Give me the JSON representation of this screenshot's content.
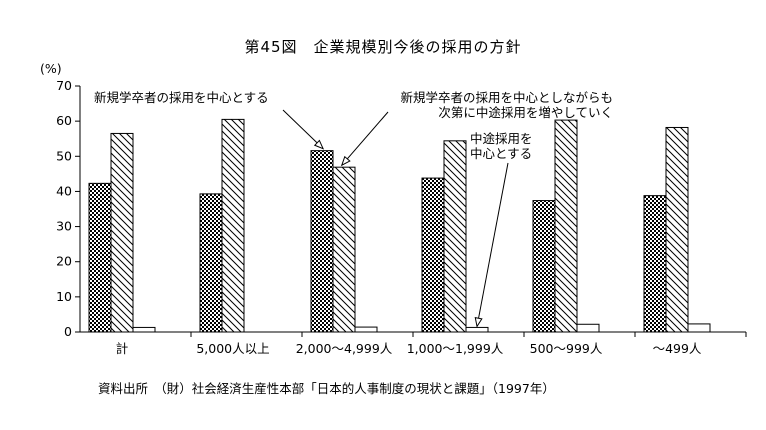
{
  "chart_data": {
    "type": "bar",
    "title": "第45図　企業規模別今後の採用の方針",
    "ylabel": "(%)",
    "ylim": [
      0,
      70
    ],
    "yticks": [
      "0",
      "10",
      "20",
      "30",
      "40",
      "50",
      "60",
      "70"
    ],
    "grid": false,
    "categories": [
      "計",
      "5,000人以上",
      "2,000～4,999人",
      "1,000～1,999人",
      "500～999人",
      "～499人"
    ],
    "series": [
      {
        "name": "新規学卒者の採用を中心とする",
        "pattern": "dots",
        "values": [
          42.3,
          39.3,
          51.6,
          43.8,
          37.4,
          38.8
        ]
      },
      {
        "name": "新規学卒者の採用を中心としながらも次第に中途採用を増やしていく",
        "pattern": "hatch",
        "values": [
          56.5,
          60.5,
          46.9,
          54.4,
          60.3,
          58.2
        ]
      },
      {
        "name": "中途採用を中心とする",
        "pattern": "none",
        "values": [
          1.3,
          0.0,
          1.4,
          1.3,
          2.2,
          2.3
        ]
      }
    ],
    "annotations": [
      {
        "lines": [
          "新規学卒者の採用を中心とする"
        ]
      },
      {
        "lines": [
          "新規学卒者の採用を中心としながらも",
          "次第に中途採用を増やしていく"
        ]
      },
      {
        "lines": [
          "中途採用を",
          "中心とする"
        ]
      }
    ],
    "source": "資料出所　（財）社会経済生産性本部「日本的人事制度の現状と課題」（1997年）"
  }
}
